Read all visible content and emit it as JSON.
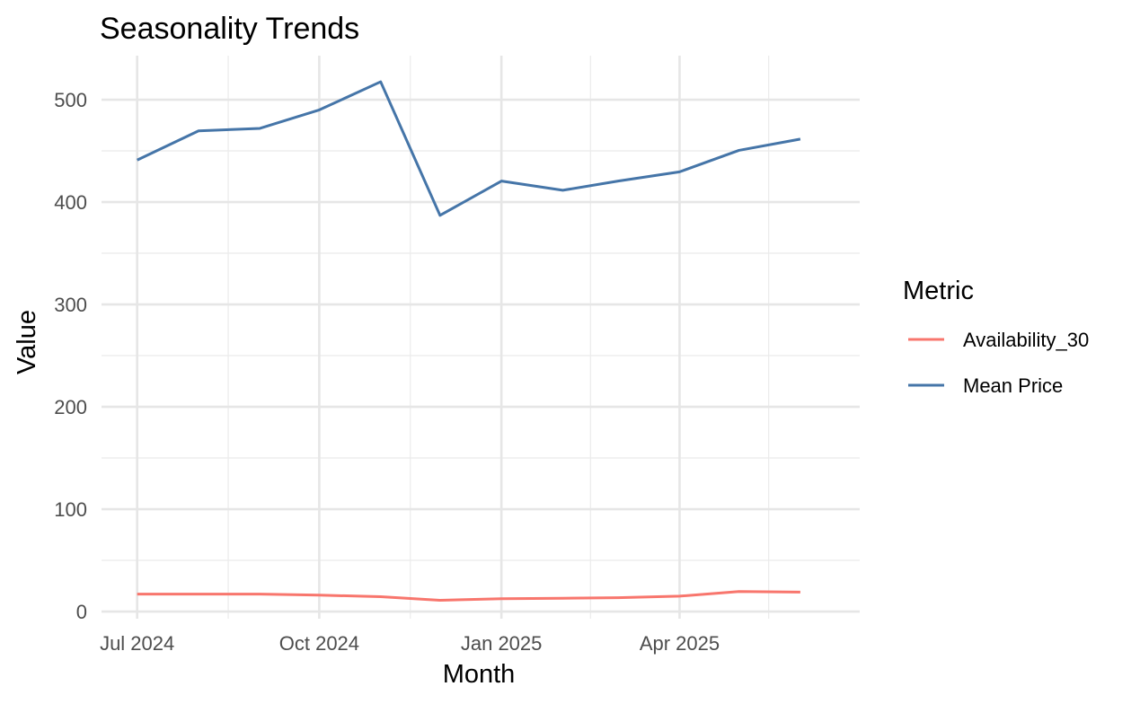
{
  "chart_data": {
    "type": "line",
    "title": "Seasonality Trends",
    "xlabel": "Month",
    "ylabel": "Value",
    "x": [
      "2024-07-01",
      "2024-08-01",
      "2024-09-01",
      "2024-10-01",
      "2024-11-01",
      "2024-12-01",
      "2025-01-01",
      "2025-02-01",
      "2025-03-01",
      "2025-04-01",
      "2025-05-01",
      "2025-06-01"
    ],
    "x_range": [
      "2024-06-13",
      "2025-07-01"
    ],
    "x_major_ticks": [
      {
        "date": "2024-07-01",
        "label": "Jul 2024"
      },
      {
        "date": "2024-10-01",
        "label": "Oct 2024"
      },
      {
        "date": "2025-01-01",
        "label": "Jan 2025"
      },
      {
        "date": "2025-04-01",
        "label": "Apr 2025"
      }
    ],
    "x_minor_ticks": [
      "2024-08-16",
      "2024-11-16",
      "2025-02-15",
      "2025-05-16"
    ],
    "ylim": [
      -7,
      543
    ],
    "y_major_ticks": [
      0,
      100,
      200,
      300,
      400,
      500
    ],
    "y_minor_ticks": [
      50,
      150,
      250,
      350,
      450
    ],
    "grid": true,
    "legend_title": "Metric",
    "legend_position": "right",
    "series": [
      {
        "name": "Availability_30",
        "color": "#F8766D",
        "values": [
          17,
          17,
          17,
          16,
          14.5,
          11,
          12.5,
          13,
          13.5,
          15,
          19.5,
          19
        ]
      },
      {
        "name": "Mean Price",
        "color": "#4575A8",
        "values": [
          441,
          469.5,
          472,
          490,
          517.5,
          387,
          420.5,
          411.5,
          420.5,
          429.5,
          450.5,
          461.5
        ]
      }
    ]
  }
}
